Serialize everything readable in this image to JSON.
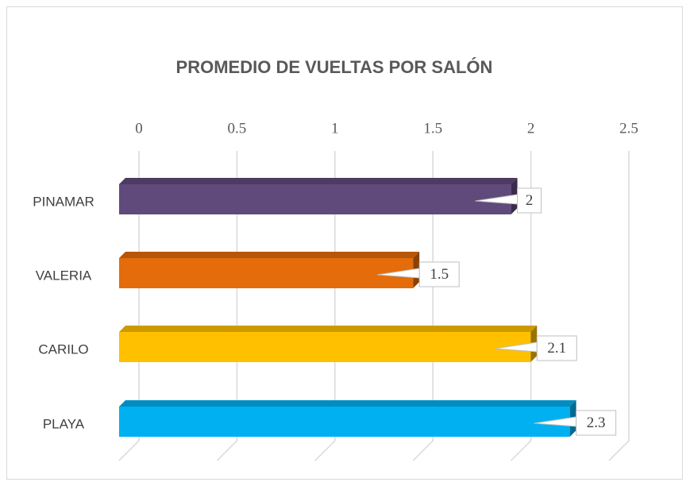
{
  "chart_data": {
    "type": "bar3d",
    "orientation": "horizontal",
    "title": "PROMEDIO DE VUELTAS POR SALÓN",
    "categories": [
      "PINAMAR",
      "VALERIA",
      "CARILO",
      "PLAYA"
    ],
    "values": [
      2,
      1.5,
      2.1,
      2.3
    ],
    "colors": [
      "#604a7b",
      "#e46c0a",
      "#ffc000",
      "#00b0f0"
    ],
    "xlim": [
      0,
      2.5
    ],
    "xticks": [
      0,
      0.5,
      1,
      1.5,
      2,
      2.5
    ],
    "grid": true,
    "data_labels": true
  }
}
